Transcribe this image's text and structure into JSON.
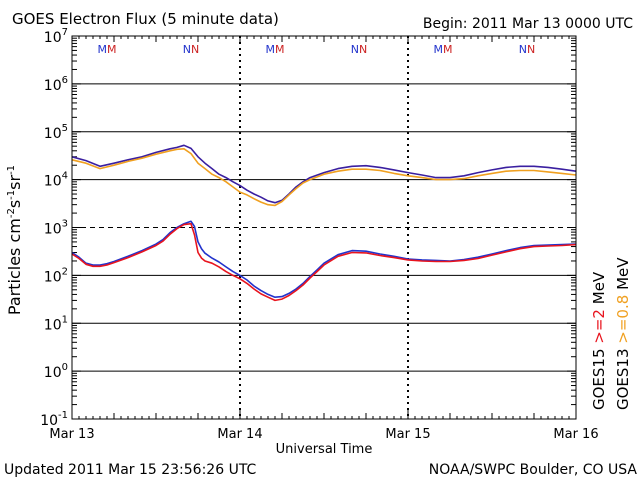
{
  "title": "GOES Electron Flux (5 minute data)",
  "begin_label": "Begin: 2011 Mar 13 0000 UTC",
  "updated_label": "Updated 2011 Mar 15 23:56:26 UTC",
  "credit_label": "NOAA/SWPC Boulder, CO USA",
  "chart_data": {
    "type": "line",
    "title": "GOES Electron Flux (5 minute data)",
    "xlabel": "Universal Time",
    "ylabel": "Particles cm-2 s-1 sr-1",
    "y_scale": "log",
    "ylim": [
      0.1,
      10000000
    ],
    "xlim_hours": [
      0,
      72
    ],
    "x_ticks": [
      {
        "hour": 0,
        "label": "Mar 13"
      },
      {
        "hour": 24,
        "label": "Mar 14"
      },
      {
        "hour": 48,
        "label": "Mar 15"
      },
      {
        "hour": 72,
        "label": "Mar 16"
      }
    ],
    "y_tick_exponents": [
      -1,
      0,
      1,
      2,
      3,
      4,
      5,
      6,
      7
    ],
    "dashed_threshold": 1000,
    "local_time_markers": [
      {
        "hour": 5,
        "mark": "MM",
        "colors": [
          "#2233cc",
          "#cc2222"
        ]
      },
      {
        "hour": 17,
        "mark": "NN",
        "colors": [
          "#2233cc",
          "#cc2222"
        ]
      },
      {
        "hour": 29,
        "mark": "MM",
        "colors": [
          "#2233cc",
          "#cc2222"
        ]
      },
      {
        "hour": 41,
        "mark": "NN",
        "colors": [
          "#2233cc",
          "#cc2222"
        ]
      },
      {
        "hour": 53,
        "mark": "MM",
        "colors": [
          "#2233cc",
          "#cc2222"
        ]
      },
      {
        "hour": 65,
        "mark": "NN",
        "colors": [
          "#2233cc",
          "#cc2222"
        ]
      }
    ],
    "series": [
      {
        "name": "GOES15 >=0.8 MeV",
        "color": "#3a1fa0",
        "x": [
          0,
          2,
          4,
          6,
          8,
          10,
          12,
          14,
          15,
          16,
          17,
          18,
          19,
          20,
          21,
          22,
          23,
          24,
          25,
          26,
          27,
          28,
          29,
          30,
          31,
          32,
          33,
          34,
          36,
          38,
          40,
          42,
          44,
          46,
          48,
          50,
          52,
          54,
          56,
          58,
          60,
          62,
          64,
          66,
          68,
          70,
          72
        ],
        "y": [
          30000,
          25000,
          19000,
          22000,
          26000,
          30000,
          37000,
          44000,
          47000,
          52000,
          45000,
          30000,
          22000,
          17000,
          13000,
          11000,
          9000,
          7500,
          6000,
          5000,
          4300,
          3600,
          3300,
          3700,
          5000,
          7000,
          9000,
          11000,
          14000,
          17000,
          19000,
          19500,
          18000,
          16000,
          14000,
          12500,
          11000,
          11000,
          12000,
          14000,
          16000,
          18000,
          19000,
          19000,
          18000,
          16500,
          15000
        ]
      },
      {
        "name": "GOES13 >=0.8 MeV",
        "color": "#f0a020",
        "x": [
          0,
          2,
          4,
          6,
          8,
          10,
          12,
          14,
          15,
          16,
          17,
          18,
          19,
          20,
          21,
          22,
          23,
          24,
          25,
          26,
          27,
          28,
          29,
          30,
          31,
          32,
          33,
          34,
          36,
          38,
          40,
          42,
          44,
          46,
          48,
          50,
          52,
          54,
          56,
          58,
          60,
          62,
          64,
          66,
          68,
          70,
          72
        ],
        "y": [
          26000,
          22000,
          17000,
          20000,
          24000,
          28000,
          34000,
          40000,
          43000,
          44000,
          35000,
          22000,
          17000,
          13000,
          11000,
          9000,
          7000,
          5500,
          4800,
          4000,
          3400,
          3000,
          2900,
          3500,
          4800,
          6500,
          8500,
          10000,
          13000,
          15000,
          16500,
          16500,
          15500,
          13500,
          12000,
          11000,
          10000,
          10000,
          10500,
          12000,
          13500,
          15000,
          15500,
          15500,
          14500,
          13500,
          12500
        ]
      },
      {
        "name": "GOES15 >=2 MeV",
        "color": "#2233cc",
        "x": [
          0,
          1,
          2,
          3,
          4,
          5,
          6,
          8,
          10,
          12,
          13,
          14,
          15,
          16,
          17,
          17.5,
          18,
          18.5,
          19,
          20,
          21,
          22,
          23,
          24,
          25,
          26,
          27,
          28,
          29,
          30,
          31,
          32,
          33,
          34,
          35,
          36,
          38,
          40,
          42,
          44,
          46,
          48,
          50,
          52,
          54,
          56,
          58,
          60,
          62,
          64,
          66,
          68,
          70,
          72
        ],
        "y": [
          300,
          240,
          180,
          165,
          165,
          175,
          195,
          250,
          330,
          450,
          560,
          780,
          1000,
          1200,
          1350,
          1050,
          500,
          360,
          290,
          230,
          190,
          150,
          120,
          100,
          80,
          60,
          48,
          40,
          35,
          36,
          42,
          52,
          68,
          95,
          130,
          180,
          270,
          330,
          320,
          280,
          250,
          220,
          210,
          205,
          200,
          215,
          240,
          280,
          330,
          380,
          420,
          430,
          440,
          450
        ]
      },
      {
        "name": "GOES13 >=2 MeV",
        "color": "#e8141e",
        "x": [
          0,
          1,
          2,
          3,
          4,
          5,
          6,
          8,
          10,
          12,
          13,
          14,
          15,
          16,
          17,
          17.5,
          18,
          18.5,
          19,
          20,
          21,
          22,
          23,
          24,
          25,
          26,
          27,
          28,
          29,
          30,
          31,
          32,
          33,
          34,
          35,
          36,
          38,
          40,
          42,
          44,
          46,
          48,
          50,
          52,
          54,
          56,
          58,
          60,
          62,
          64,
          66,
          68,
          70,
          72
        ],
        "y": [
          280,
          225,
          170,
          155,
          155,
          165,
          185,
          235,
          310,
          420,
          520,
          720,
          950,
          1150,
          1200,
          700,
          300,
          230,
          200,
          180,
          150,
          120,
          100,
          85,
          68,
          52,
          41,
          35,
          30,
          32,
          38,
          48,
          63,
          88,
          120,
          165,
          250,
          300,
          295,
          260,
          235,
          210,
          200,
          195,
          195,
          205,
          225,
          265,
          310,
          360,
          400,
          410,
          420,
          440
        ]
      }
    ],
    "legend": [
      {
        "label": "GOES15",
        "color": "#000000"
      },
      {
        "label": "GOES13",
        "color": "#000000"
      },
      {
        "label": ">=2",
        "color": "#e8141e"
      },
      {
        "label": "MeV",
        "color": "#000000"
      },
      {
        "label": ">=0.8",
        "color": "#f0a020"
      },
      {
        "label": "MeV",
        "color": "#000000"
      }
    ]
  }
}
